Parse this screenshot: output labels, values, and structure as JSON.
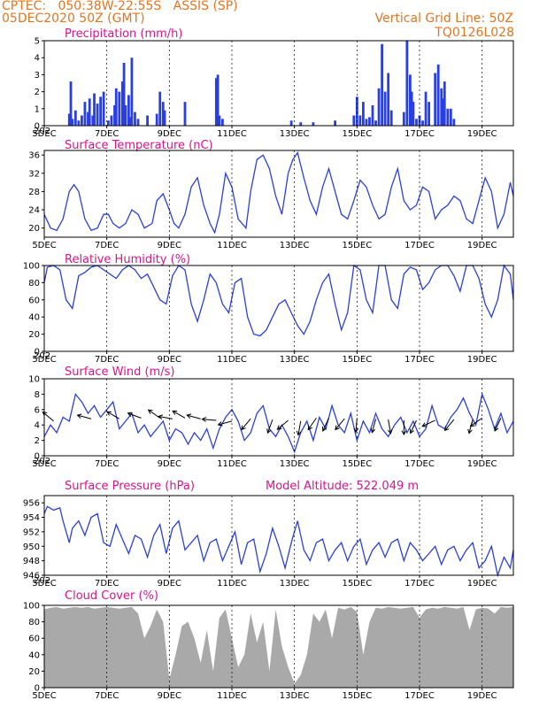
{
  "header": {
    "line1": "CPTEC:   050:38W-22:55S   ASSIS (SP)",
    "line2": "05DEC2020 50Z (GMT)",
    "grid_note": "Vertical Grid Line: 50Z",
    "model_id": "TQ0126L028"
  },
  "colors": {
    "header": "#e8731d",
    "panel_title": "#e0108a",
    "series": "#2a3fe0",
    "cloud_fill": "#a9a9a9",
    "frame": "#000000"
  },
  "x_axis": {
    "ticks": [
      {
        "day": 5,
        "label": "5DEC"
      },
      {
        "day": 7,
        "label": "7DEC"
      },
      {
        "day": 9,
        "label": "9DEC"
      },
      {
        "day": 11,
        "label": "11DEC"
      },
      {
        "day": 13,
        "label": "13DEC"
      },
      {
        "day": 15,
        "label": "15DEC"
      },
      {
        "day": 17,
        "label": "17DEC"
      },
      {
        "day": 19,
        "label": "19DEC"
      }
    ],
    "start_stub": "202"
  },
  "chart_data": [
    {
      "type": "bar",
      "title": "Precipitation (mm/h)",
      "ylim": [
        0,
        5
      ],
      "yticks": [
        0,
        1,
        2,
        3,
        4,
        5
      ],
      "grid": true,
      "x": [
        5.8,
        5.85,
        5.9,
        6.0,
        6.1,
        6.2,
        6.3,
        6.4,
        6.45,
        6.55,
        6.6,
        6.7,
        6.8,
        6.9,
        7.05,
        7.15,
        7.25,
        7.3,
        7.4,
        7.5,
        7.55,
        7.6,
        7.7,
        7.75,
        7.8,
        7.9,
        8.0,
        8.3,
        8.6,
        8.7,
        8.8,
        8.85,
        9.5,
        10.5,
        10.55,
        10.6,
        10.7,
        12.9,
        13.2,
        13.6,
        14.3,
        14.9,
        15.0,
        15.1,
        15.2,
        15.3,
        15.4,
        15.5,
        15.6,
        15.7,
        15.8,
        15.9,
        16.0,
        16.1,
        16.5,
        16.6,
        16.7,
        16.75,
        16.8,
        16.9,
        17.0,
        17.1,
        17.2,
        17.3,
        17.5,
        17.6,
        17.7,
        17.75,
        17.8,
        17.9,
        18.0,
        18.1
      ],
      "values": [
        0.7,
        2.6,
        0.4,
        0.9,
        0.3,
        0.6,
        1.4,
        0.8,
        1.6,
        0.6,
        1.9,
        1.3,
        1.7,
        2.0,
        0.3,
        0.6,
        1.2,
        2.2,
        2.0,
        2.6,
        3.7,
        1.2,
        1.8,
        0.5,
        4.0,
        0.8,
        0.4,
        0.6,
        0.7,
        2.0,
        1.4,
        0.9,
        1.4,
        2.8,
        3.0,
        0.6,
        0.4,
        0.3,
        0.2,
        0.2,
        0.3,
        0.6,
        1.7,
        0.6,
        1.4,
        0.4,
        0.5,
        1.2,
        0.3,
        2.2,
        4.8,
        2.0,
        3.1,
        0.9,
        0.8,
        5.0,
        3.0,
        2.0,
        1.4,
        0.4,
        0.6,
        0.3,
        2.0,
        1.4,
        3.1,
        3.6,
        2.2,
        1.6,
        2.6,
        1.0,
        1.0,
        0.4
      ]
    },
    {
      "type": "line",
      "title": "Surface Temperature (nC)",
      "ylim": [
        18,
        37
      ],
      "yticks": [
        20,
        24,
        28,
        32,
        36
      ],
      "grid": true,
      "x": [
        5.0,
        5.2,
        5.4,
        5.6,
        5.8,
        5.95,
        6.1,
        6.3,
        6.5,
        6.7,
        6.9,
        7.05,
        7.2,
        7.4,
        7.6,
        7.8,
        8.0,
        8.2,
        8.45,
        8.6,
        8.8,
        9.0,
        9.15,
        9.3,
        9.5,
        9.7,
        9.9,
        10.1,
        10.3,
        10.45,
        10.6,
        10.8,
        11.0,
        11.2,
        11.45,
        11.6,
        11.8,
        12.0,
        12.2,
        12.4,
        12.6,
        12.8,
        12.95,
        13.1,
        13.3,
        13.5,
        13.7,
        13.9,
        14.1,
        14.3,
        14.5,
        14.7,
        14.9,
        15.1,
        15.3,
        15.5,
        15.7,
        15.9,
        16.1,
        16.3,
        16.5,
        16.7,
        16.9,
        17.1,
        17.3,
        17.5,
        17.7,
        17.9,
        18.1,
        18.3,
        18.5,
        18.7,
        18.9,
        19.1,
        19.3,
        19.5,
        19.7,
        19.9,
        20.0
      ],
      "values": [
        23,
        20,
        19.5,
        22,
        28,
        29.5,
        28,
        22,
        19.5,
        20,
        23,
        23,
        21,
        20,
        21,
        24,
        23,
        20,
        21,
        26,
        27.5,
        24,
        21,
        20,
        23,
        29,
        31,
        25,
        21,
        19,
        23,
        32,
        29,
        22,
        20,
        28,
        35,
        36,
        33,
        27,
        23,
        32,
        35,
        36.5,
        31,
        26,
        23,
        29,
        33,
        28,
        23,
        22,
        26,
        30.5,
        29,
        25,
        22,
        23,
        29,
        33,
        26,
        24,
        25,
        29,
        28,
        22,
        24,
        25,
        27,
        26,
        22,
        21,
        26,
        31,
        28,
        20,
        23,
        30,
        27
      ]
    },
    {
      "type": "line",
      "title": "Relative Humidity (%)",
      "ylim": [
        0,
        100
      ],
      "yticks": [
        0,
        20,
        40,
        60,
        80,
        100
      ],
      "grid": true,
      "x": [
        5.0,
        5.1,
        5.3,
        5.5,
        5.7,
        5.9,
        6.1,
        6.3,
        6.5,
        6.7,
        6.9,
        7.1,
        7.3,
        7.5,
        7.7,
        7.9,
        8.1,
        8.3,
        8.5,
        8.7,
        8.9,
        9.1,
        9.3,
        9.5,
        9.7,
        9.9,
        10.1,
        10.3,
        10.5,
        10.7,
        10.9,
        11.1,
        11.3,
        11.5,
        11.7,
        11.9,
        12.1,
        12.3,
        12.5,
        12.7,
        12.9,
        13.1,
        13.3,
        13.5,
        13.7,
        13.9,
        14.1,
        14.3,
        14.5,
        14.7,
        14.9,
        15.1,
        15.3,
        15.5,
        15.7,
        15.9,
        16.1,
        16.3,
        16.5,
        16.7,
        16.9,
        17.1,
        17.3,
        17.5,
        17.7,
        17.9,
        18.1,
        18.3,
        18.5,
        18.7,
        18.9,
        19.1,
        19.3,
        19.5,
        19.7,
        19.9,
        20.0
      ],
      "values": [
        80,
        98,
        100,
        95,
        60,
        50,
        88,
        92,
        98,
        100,
        95,
        90,
        85,
        95,
        100,
        95,
        85,
        90,
        75,
        60,
        55,
        88,
        100,
        95,
        55,
        35,
        60,
        90,
        80,
        55,
        45,
        80,
        85,
        40,
        20,
        18,
        25,
        40,
        55,
        60,
        45,
        30,
        20,
        35,
        60,
        80,
        90,
        55,
        25,
        45,
        100,
        95,
        60,
        45,
        100,
        100,
        60,
        50,
        90,
        98,
        95,
        72,
        80,
        95,
        100,
        100,
        88,
        70,
        100,
        100,
        85,
        55,
        40,
        60,
        100,
        90,
        60
      ]
    },
    {
      "type": "line",
      "title": "Surface Wind (m/s)",
      "ylim": [
        0,
        10
      ],
      "yticks": [
        0,
        2,
        4,
        6,
        8,
        10
      ],
      "grid": true,
      "x": [
        5.0,
        5.2,
        5.4,
        5.6,
        5.8,
        6.0,
        6.2,
        6.4,
        6.6,
        6.8,
        7.0,
        7.2,
        7.4,
        7.6,
        7.8,
        8.0,
        8.2,
        8.4,
        8.6,
        8.8,
        9.0,
        9.2,
        9.4,
        9.6,
        9.8,
        10.0,
        10.2,
        10.4,
        10.6,
        10.8,
        11.0,
        11.2,
        11.4,
        11.6,
        11.8,
        12.0,
        12.2,
        12.4,
        12.6,
        12.8,
        13.0,
        13.2,
        13.4,
        13.6,
        13.8,
        14.0,
        14.2,
        14.4,
        14.6,
        14.8,
        15.0,
        15.2,
        15.4,
        15.6,
        15.8,
        16.0,
        16.2,
        16.4,
        16.6,
        16.8,
        17.0,
        17.2,
        17.4,
        17.6,
        17.8,
        18.0,
        18.2,
        18.4,
        18.6,
        18.8,
        19.0,
        19.2,
        19.4,
        19.6,
        19.8,
        20.0
      ],
      "values": [
        2.5,
        4.0,
        3.0,
        5.0,
        4.5,
        8.0,
        7.0,
        5.5,
        6.5,
        5.0,
        6.0,
        7.0,
        3.5,
        4.5,
        5.5,
        3.0,
        4.0,
        2.5,
        3.5,
        4.5,
        2.0,
        3.5,
        3.0,
        1.5,
        3.0,
        2.0,
        3.5,
        1.0,
        3.5,
        5.0,
        6.0,
        4.5,
        2.0,
        3.0,
        5.5,
        6.5,
        3.5,
        2.5,
        4.0,
        2.5,
        0.5,
        3.0,
        4.5,
        2.0,
        5.0,
        3.5,
        6.5,
        4.0,
        3.0,
        5.5,
        2.0,
        4.5,
        3.0,
        5.5,
        3.5,
        2.5,
        4.0,
        5.0,
        3.0,
        4.5,
        2.5,
        3.5,
        6.5,
        4.0,
        3.5,
        5.0,
        6.0,
        7.5,
        5.5,
        4.0,
        8.0,
        6.0,
        3.5,
        5.5,
        3.0,
        4.5
      ],
      "arrows": {
        "x": [
          5.3,
          6.5,
          7.4,
          8.1,
          8.7,
          9.1,
          9.5,
          10.0,
          10.5,
          11.0,
          11.6,
          12.3,
          12.8,
          13.2,
          13.7,
          14.1,
          14.6,
          15.0,
          15.6,
          16.0,
          16.5,
          16.9,
          17.5,
          18.1,
          18.7,
          19.0,
          19.6
        ],
        "y": [
          4.5,
          4.8,
          4.8,
          4.9,
          4.9,
          4.8,
          4.9,
          4.8,
          4.6,
          4.5,
          4.8,
          4.7,
          4.6,
          4.5,
          4.9,
          4.9,
          4.8,
          4.9,
          4.8,
          4.7,
          4.6,
          4.6,
          4.6,
          4.7,
          4.7,
          4.9,
          4.9
        ],
        "dir_deg": [
          140,
          165,
          150,
          160,
          145,
          170,
          150,
          165,
          175,
          195,
          230,
          250,
          220,
          260,
          235,
          245,
          230,
          265,
          255,
          280,
          270,
          245,
          205,
          230,
          255,
          215,
          245
        ]
      }
    },
    {
      "type": "line",
      "title": "Surface Pressure (hPa)",
      "annotation": "Model Altitude: 522.049 m",
      "ylim": [
        946,
        957
      ],
      "yticks": [
        946,
        948,
        950,
        952,
        954,
        956
      ],
      "grid": true,
      "x": [
        5.0,
        5.1,
        5.3,
        5.5,
        5.6,
        5.8,
        5.9,
        6.1,
        6.3,
        6.5,
        6.7,
        6.9,
        7.1,
        7.3,
        7.5,
        7.7,
        7.9,
        8.1,
        8.3,
        8.5,
        8.7,
        8.9,
        9.1,
        9.3,
        9.5,
        9.7,
        9.9,
        10.1,
        10.3,
        10.5,
        10.7,
        10.9,
        11.1,
        11.3,
        11.5,
        11.7,
        11.9,
        12.1,
        12.3,
        12.5,
        12.7,
        12.9,
        13.1,
        13.3,
        13.5,
        13.7,
        13.9,
        14.1,
        14.3,
        14.5,
        14.7,
        14.9,
        15.1,
        15.3,
        15.5,
        15.7,
        15.9,
        16.1,
        16.3,
        16.5,
        16.7,
        16.9,
        17.1,
        17.3,
        17.5,
        17.7,
        17.9,
        18.1,
        18.3,
        18.5,
        18.7,
        18.9,
        19.1,
        19.3,
        19.5,
        19.7,
        19.9,
        20.0
      ],
      "values": [
        954.5,
        955.5,
        955.0,
        955.3,
        953.5,
        950.5,
        952.5,
        953.5,
        951.5,
        954.0,
        954.5,
        950.5,
        950.0,
        953.0,
        951.0,
        949.0,
        951.5,
        951.0,
        948.5,
        951.5,
        953.0,
        949.0,
        952.5,
        953.5,
        949.5,
        950.5,
        951.5,
        948.0,
        950.5,
        951.0,
        948.0,
        950.0,
        952.0,
        947.5,
        950.5,
        951.0,
        946.5,
        949.0,
        952.5,
        950.0,
        947.0,
        950.5,
        953.5,
        949.5,
        948.0,
        950.5,
        951.0,
        948.0,
        949.5,
        950.5,
        948.0,
        950.0,
        951.0,
        947.5,
        949.5,
        950.5,
        948.5,
        950.5,
        951.0,
        948.0,
        950.5,
        949.5,
        948.0,
        949.0,
        950.0,
        947.5,
        949.5,
        950.0,
        948.0,
        949.5,
        950.5,
        947.0,
        948.0,
        950.0,
        946.0,
        948.5,
        947.0,
        949.5
      ]
    },
    {
      "type": "area",
      "title": "Cloud Cover (%)",
      "ylim": [
        0,
        100
      ],
      "yticks": [
        0,
        20,
        40,
        60,
        80,
        100
      ],
      "grid": true,
      "x": [
        5.0,
        5.2,
        5.4,
        5.6,
        5.8,
        6.0,
        6.2,
        6.4,
        6.6,
        6.8,
        7.0,
        7.2,
        7.4,
        7.6,
        7.8,
        8.0,
        8.2,
        8.4,
        8.6,
        8.8,
        9.0,
        9.2,
        9.4,
        9.6,
        9.8,
        10.0,
        10.2,
        10.4,
        10.6,
        10.8,
        11.0,
        11.2,
        11.4,
        11.6,
        11.8,
        12.0,
        12.2,
        12.4,
        12.6,
        12.8,
        13.0,
        13.2,
        13.4,
        13.6,
        13.8,
        14.0,
        14.2,
        14.4,
        14.6,
        14.8,
        15.0,
        15.2,
        15.4,
        15.6,
        15.8,
        16.0,
        16.2,
        16.4,
        16.6,
        16.8,
        17.0,
        17.2,
        17.4,
        17.6,
        17.8,
        18.0,
        18.2,
        18.4,
        18.6,
        18.8,
        19.0,
        19.2,
        19.4,
        19.6,
        19.8,
        20.0
      ],
      "values": [
        95,
        97,
        98,
        96,
        97,
        98,
        97,
        98,
        96,
        97,
        98,
        97,
        96,
        97,
        98,
        90,
        60,
        75,
        95,
        80,
        10,
        40,
        75,
        80,
        60,
        30,
        70,
        20,
        85,
        95,
        60,
        25,
        40,
        90,
        55,
        80,
        20,
        95,
        50,
        25,
        5,
        15,
        40,
        90,
        80,
        95,
        60,
        97,
        95,
        98,
        92,
        40,
        80,
        97,
        96,
        98,
        97,
        96,
        97,
        98,
        85,
        95,
        97,
        96,
        98,
        97,
        96,
        98,
        70,
        95,
        97,
        96,
        90,
        98,
        97,
        98
      ]
    }
  ]
}
